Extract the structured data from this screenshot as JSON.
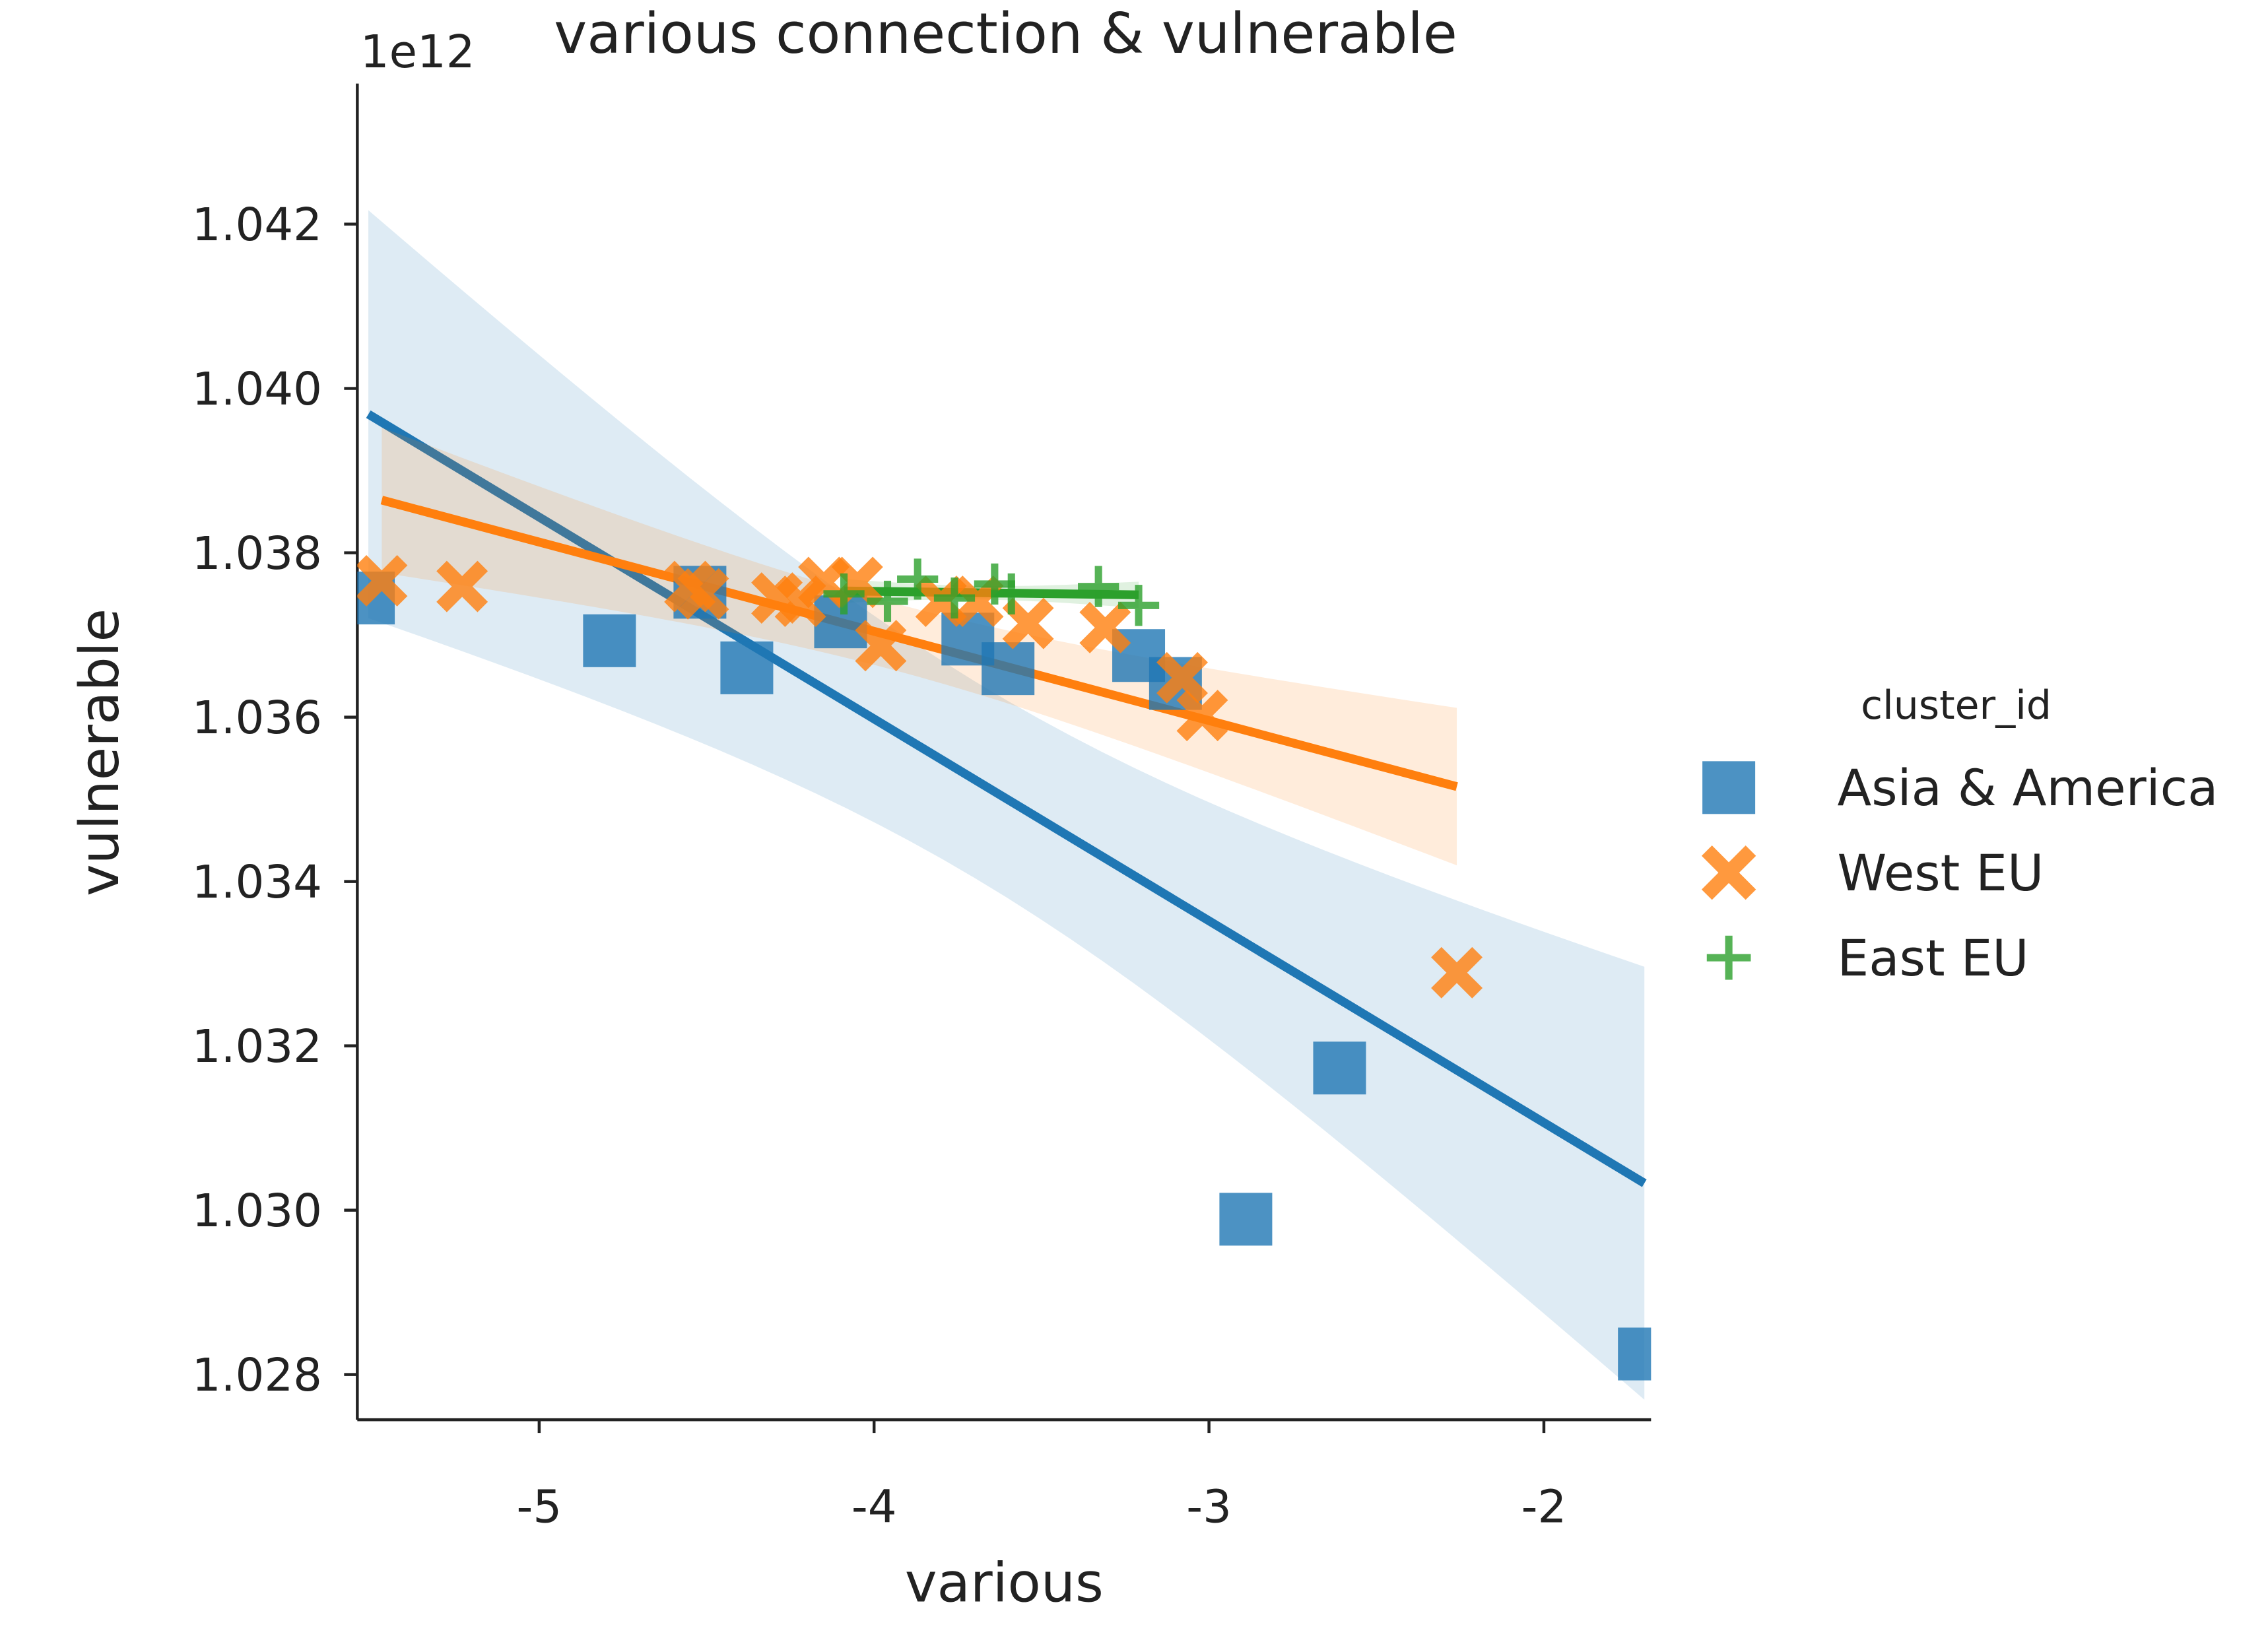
{
  "chart_data": {
    "type": "scatter",
    "title": "various connection & vulnerable",
    "x_label": "various",
    "y_label": "vulnerable",
    "y_offset_label": "1e12",
    "legend_title": "cluster_id",
    "legend_position": "right",
    "regression": true,
    "xlim": [
      -5.543,
      -1.68
    ],
    "ylim": [
      1.02745,
      1.04371
    ],
    "xticks": [
      -5,
      -4,
      -3,
      -2
    ],
    "yticks": [
      1.028,
      {
        "value": 1.03,
        "label": "1.030"
      },
      1.032,
      1.034,
      1.036,
      1.038,
      {
        "value": 1.04,
        "label": "1.040"
      },
      1.042
    ],
    "series": [
      {
        "name": "Asia & America",
        "color": "#1f77b4",
        "marker": "square",
        "x": [
          -5.51,
          -4.79,
          -4.38,
          -4.52,
          -4.1,
          -3.72,
          -3.6,
          -3.21,
          -3.1,
          -2.89,
          -2.61,
          -1.7
        ],
        "values": [
          1.03745,
          1.03693,
          1.0366,
          1.03752,
          1.03716,
          1.03695,
          1.03659,
          1.03675,
          1.03641,
          1.02989,
          1.03173,
          1.02825
        ]
      },
      {
        "name": "West EU",
        "color": "#ff7f0e",
        "marker": "x",
        "x": [
          -5.47,
          -5.23,
          -4.55,
          -4.51,
          -4.29,
          -4.22,
          -4.15,
          -4.05,
          -3.98,
          -3.8,
          -3.69,
          -3.54,
          -3.31,
          -3.08,
          -3.02,
          -2.26
        ],
        "values": [
          1.03766,
          1.03759,
          1.03759,
          1.0375,
          1.03745,
          1.03741,
          1.03764,
          1.03764,
          1.03687,
          1.03741,
          1.03741,
          1.03714,
          1.03709,
          1.03648,
          1.03602,
          1.03289
        ]
      },
      {
        "name": "East EU",
        "color": "#2ca02c",
        "marker": "plus",
        "x": [
          -4.09,
          -3.96,
          -3.87,
          -3.76,
          -3.64,
          -3.59,
          -3.33,
          -3.21
        ],
        "values": [
          1.0375,
          1.03741,
          1.03768,
          1.03745,
          1.03762,
          1.0375,
          1.03759,
          1.03736
        ]
      }
    ]
  }
}
